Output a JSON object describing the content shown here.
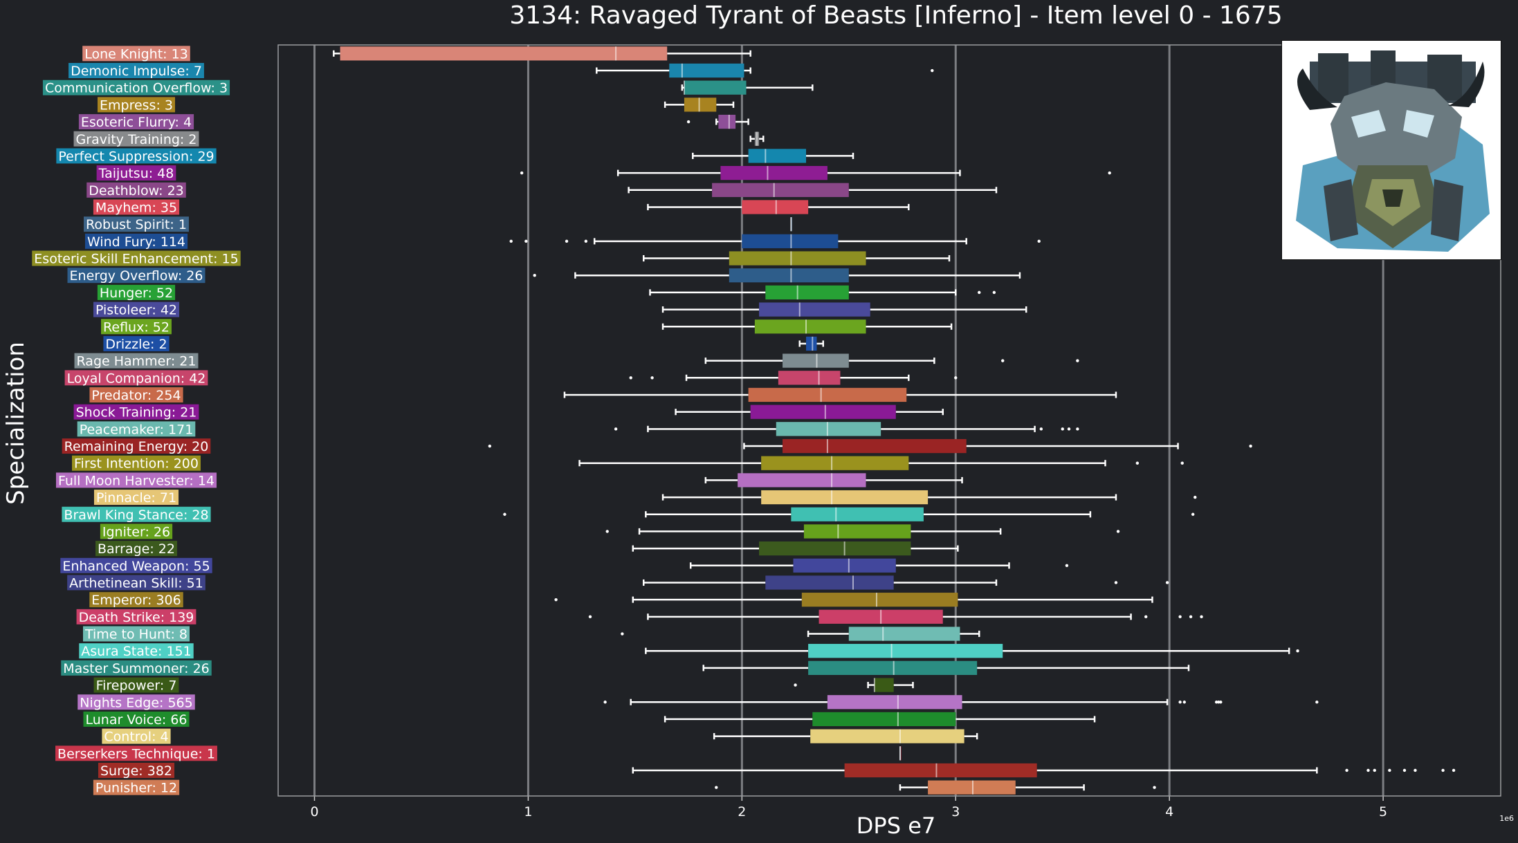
{
  "chart_data": {
    "type": "box",
    "orientation": "horizontal",
    "title": "3134: Ravaged Tyrant of Beasts [Inferno] - Item level 0 - 1675",
    "xlabel": "DPS e7",
    "ylabel": "Specialization",
    "x_offset_label": "1e6",
    "xlim": [
      -0.17,
      5.55
    ],
    "xticks": [
      0,
      1,
      2,
      3,
      4,
      5
    ],
    "grid": "vertical",
    "legend": "none",
    "boss_icon": "ravaged-tyrant-of-beasts-portrait",
    "colors": {
      "background": "#202226",
      "grid": "#7c7e82",
      "text": "#ffffff",
      "whisker": "#ffffff"
    },
    "series": [
      {
        "label": "Lone Knight: 13",
        "color": "#d98577",
        "whisker_low": 0.09,
        "q1": 0.12,
        "median": 1.41,
        "q3": 1.65,
        "whisker_high": 2.04,
        "outliers": []
      },
      {
        "label": "Demonic Impulse: 7",
        "color": "#1a86ad",
        "whisker_low": 1.32,
        "q1": 1.66,
        "median": 1.72,
        "q3": 2.01,
        "whisker_high": 2.04,
        "outliers": [
          2.89
        ]
      },
      {
        "label": "Communication Overflow: 3",
        "color": "#2b9188",
        "whisker_low": 1.72,
        "q1": 1.73,
        "median": 1.73,
        "q3": 2.02,
        "whisker_high": 2.33,
        "outliers": []
      },
      {
        "label": "Empress: 3",
        "color": "#a88320",
        "whisker_low": 1.64,
        "q1": 1.73,
        "median": 1.8,
        "q3": 1.88,
        "whisker_high": 1.96,
        "outliers": []
      },
      {
        "label": "Esoteric Flurry: 4",
        "color": "#8e4f98",
        "whisker_low": 1.88,
        "q1": 1.89,
        "median": 1.94,
        "q3": 1.97,
        "whisker_high": 2.03,
        "outliers": [
          1.75
        ]
      },
      {
        "label": "Gravity Training: 2",
        "color": "#888a8c",
        "whisker_low": 2.04,
        "q1": 2.06,
        "median": 2.07,
        "q3": 2.08,
        "whisker_high": 2.1,
        "outliers": []
      },
      {
        "label": "Perfect Suppression: 29",
        "color": "#1487ae",
        "whisker_low": 1.77,
        "q1": 2.03,
        "median": 2.11,
        "q3": 2.3,
        "whisker_high": 2.52,
        "outliers": []
      },
      {
        "label": "Taijutsu: 48",
        "color": "#8e1d93",
        "whisker_low": 1.42,
        "q1": 1.9,
        "median": 2.12,
        "q3": 2.4,
        "whisker_high": 3.02,
        "outliers": [
          0.97,
          3.72
        ]
      },
      {
        "label": "Deathblow: 23",
        "color": "#8a4788",
        "whisker_low": 1.47,
        "q1": 1.86,
        "median": 2.15,
        "q3": 2.5,
        "whisker_high": 3.19,
        "outliers": []
      },
      {
        "label": "Mayhem: 35",
        "color": "#d84655",
        "whisker_low": 1.56,
        "q1": 2.0,
        "median": 2.16,
        "q3": 2.31,
        "whisker_high": 2.78,
        "outliers": []
      },
      {
        "label": "Robust Spirit: 1",
        "color": "#3d6488",
        "whisker_low": 2.23,
        "q1": 2.23,
        "median": 2.23,
        "q3": 2.23,
        "whisker_high": 2.23,
        "outliers": []
      },
      {
        "label": "Wind Fury: 114",
        "color": "#1d4d93",
        "whisker_low": 1.31,
        "q1": 2.0,
        "median": 2.23,
        "q3": 2.45,
        "whisker_high": 3.05,
        "outliers": [
          0.92,
          0.99,
          1.18,
          1.27,
          3.39
        ]
      },
      {
        "label": "Esoteric Skill Enhancement: 15",
        "color": "#8e8f22",
        "whisker_low": 1.54,
        "q1": 1.94,
        "median": 2.23,
        "q3": 2.58,
        "whisker_high": 2.97,
        "outliers": []
      },
      {
        "label": "Energy Overflow: 26",
        "color": "#2e5d8a",
        "whisker_low": 1.22,
        "q1": 1.94,
        "median": 2.23,
        "q3": 2.5,
        "whisker_high": 3.3,
        "outliers": [
          1.03
        ]
      },
      {
        "label": "Hunger: 52",
        "color": "#27a135",
        "whisker_low": 1.57,
        "q1": 2.11,
        "median": 2.26,
        "q3": 2.5,
        "whisker_high": 3.0,
        "outliers": [
          3.11,
          3.18
        ]
      },
      {
        "label": "Pistoleer: 42",
        "color": "#4a4a9a",
        "whisker_low": 1.63,
        "q1": 2.08,
        "median": 2.27,
        "q3": 2.6,
        "whisker_high": 3.33,
        "outliers": []
      },
      {
        "label": "Reflux: 52",
        "color": "#6ba51f",
        "whisker_low": 1.63,
        "q1": 2.06,
        "median": 2.3,
        "q3": 2.58,
        "whisker_high": 2.98,
        "outliers": []
      },
      {
        "label": "Drizzle: 2",
        "color": "#1d4fa5",
        "whisker_low": 2.27,
        "q1": 2.3,
        "median": 2.33,
        "q3": 2.35,
        "whisker_high": 2.38,
        "outliers": []
      },
      {
        "label": "Rage Hammer: 21",
        "color": "#7e8c91",
        "whisker_low": 1.83,
        "q1": 2.19,
        "median": 2.35,
        "q3": 2.5,
        "whisker_high": 2.9,
        "outliers": [
          3.22,
          3.57
        ]
      },
      {
        "label": "Loyal Companion: 42",
        "color": "#c7456b",
        "whisker_low": 1.74,
        "q1": 2.17,
        "median": 2.36,
        "q3": 2.46,
        "whisker_high": 2.78,
        "outliers": [
          1.48,
          1.58,
          3.0
        ]
      },
      {
        "label": "Predator: 254",
        "color": "#c86a4a",
        "whisker_low": 1.17,
        "q1": 2.03,
        "median": 2.37,
        "q3": 2.77,
        "whisker_high": 3.75,
        "outliers": []
      },
      {
        "label": "Shock Training: 21",
        "color": "#8a1a96",
        "whisker_low": 1.69,
        "q1": 2.04,
        "median": 2.39,
        "q3": 2.72,
        "whisker_high": 2.94,
        "outliers": []
      },
      {
        "label": "Peacemaker: 171",
        "color": "#6ab8ae",
        "whisker_low": 1.56,
        "q1": 2.16,
        "median": 2.4,
        "q3": 2.65,
        "whisker_high": 3.37,
        "outliers": [
          1.41,
          3.4,
          3.5,
          3.53,
          3.57
        ]
      },
      {
        "label": "Remaining Energy: 20",
        "color": "#9a2424",
        "whisker_low": 2.01,
        "q1": 2.19,
        "median": 2.4,
        "q3": 3.05,
        "whisker_high": 4.04,
        "outliers": [
          0.82,
          4.38
        ]
      },
      {
        "label": "First Intention: 200",
        "color": "#9a921e",
        "whisker_low": 1.24,
        "q1": 2.09,
        "median": 2.42,
        "q3": 2.78,
        "whisker_high": 3.7,
        "outliers": [
          3.85,
          4.06
        ]
      },
      {
        "label": "Full Moon Harvester: 14",
        "color": "#b56fc2",
        "whisker_low": 1.83,
        "q1": 1.98,
        "median": 2.42,
        "q3": 2.58,
        "whisker_high": 3.03,
        "outliers": []
      },
      {
        "label": "Pinnacle: 71",
        "color": "#e6c676",
        "whisker_low": 1.63,
        "q1": 2.09,
        "median": 2.42,
        "q3": 2.87,
        "whisker_high": 3.75,
        "outliers": [
          4.12
        ]
      },
      {
        "label": "Brawl King Stance: 28",
        "color": "#40c0b2",
        "whisker_low": 1.55,
        "q1": 2.23,
        "median": 2.44,
        "q3": 2.85,
        "whisker_high": 3.63,
        "outliers": [
          0.89,
          4.11
        ]
      },
      {
        "label": "Igniter: 26",
        "color": "#66a21c",
        "whisker_low": 1.52,
        "q1": 2.29,
        "median": 2.45,
        "q3": 2.79,
        "whisker_high": 3.21,
        "outliers": [
          1.37,
          3.76
        ]
      },
      {
        "label": "Barrage: 22",
        "color": "#3c5a1e",
        "whisker_low": 1.49,
        "q1": 2.08,
        "median": 2.48,
        "q3": 2.79,
        "whisker_high": 3.01,
        "outliers": []
      },
      {
        "label": "Enhanced Weapon: 55",
        "color": "#42479c",
        "whisker_low": 1.76,
        "q1": 2.24,
        "median": 2.5,
        "q3": 2.72,
        "whisker_high": 3.25,
        "outliers": [
          3.52
        ]
      },
      {
        "label": "Arthetinean Skill: 51",
        "color": "#3e4288",
        "whisker_low": 1.54,
        "q1": 2.11,
        "median": 2.52,
        "q3": 2.71,
        "whisker_high": 3.19,
        "outliers": [
          3.75,
          3.99
        ]
      },
      {
        "label": "Emperor: 306",
        "color": "#9a7d22",
        "whisker_low": 1.49,
        "q1": 2.28,
        "median": 2.63,
        "q3": 3.01,
        "whisker_high": 3.92,
        "outliers": [
          1.13
        ]
      },
      {
        "label": "Death Strike: 139",
        "color": "#cc3f68",
        "whisker_low": 1.56,
        "q1": 2.36,
        "median": 2.65,
        "q3": 2.94,
        "whisker_high": 3.82,
        "outliers": [
          1.29,
          3.89,
          4.05,
          4.1,
          4.15
        ]
      },
      {
        "label": "Time to Hunt: 8",
        "color": "#6fbcb3",
        "whisker_low": 2.31,
        "q1": 2.5,
        "median": 2.66,
        "q3": 3.02,
        "whisker_high": 3.11,
        "outliers": [
          1.44
        ]
      },
      {
        "label": "Asura State: 151",
        "color": "#4fd0c5",
        "whisker_low": 1.55,
        "q1": 2.31,
        "median": 2.7,
        "q3": 3.22,
        "whisker_high": 4.56,
        "outliers": [
          4.6
        ]
      },
      {
        "label": "Master Summoner: 26",
        "color": "#2b8d82",
        "whisker_low": 1.82,
        "q1": 2.31,
        "median": 2.71,
        "q3": 3.1,
        "whisker_high": 4.09,
        "outliers": []
      },
      {
        "label": "Firepower: 7",
        "color": "#3a5a16",
        "whisker_low": 2.59,
        "q1": 2.62,
        "median": 2.62,
        "q3": 2.71,
        "whisker_high": 2.8,
        "outliers": [
          2.25
        ]
      },
      {
        "label": "Nights Edge: 565",
        "color": "#b574c6",
        "whisker_low": 1.48,
        "q1": 2.4,
        "median": 2.73,
        "q3": 3.03,
        "whisker_high": 3.99,
        "outliers": [
          1.36,
          4.05,
          4.07,
          4.22,
          4.23,
          4.24,
          4.69
        ]
      },
      {
        "label": "Lunar Voice: 66",
        "color": "#1e8c2c",
        "whisker_low": 1.64,
        "q1": 2.33,
        "median": 2.73,
        "q3": 3.0,
        "whisker_high": 3.65,
        "outliers": []
      },
      {
        "label": "Control: 4",
        "color": "#e6d07e",
        "whisker_low": 1.87,
        "q1": 2.32,
        "median": 2.74,
        "q3": 3.04,
        "whisker_high": 3.1,
        "outliers": []
      },
      {
        "label": "Berserkers Technique: 1",
        "color": "#c9364b",
        "whisker_low": 2.74,
        "q1": 2.74,
        "median": 2.74,
        "q3": 2.74,
        "whisker_high": 2.74,
        "outliers": []
      },
      {
        "label": "Surge: 382",
        "color": "#a02c26",
        "whisker_low": 1.49,
        "q1": 2.48,
        "median": 2.91,
        "q3": 3.38,
        "whisker_high": 4.69,
        "outliers": [
          4.83,
          4.93,
          4.96,
          5.03,
          5.1,
          5.15,
          5.28,
          5.33
        ]
      },
      {
        "label": "Punisher: 12",
        "color": "#d07c55",
        "whisker_low": 2.74,
        "q1": 2.87,
        "median": 3.08,
        "q3": 3.28,
        "whisker_high": 3.6,
        "outliers": [
          1.88,
          3.93
        ]
      }
    ]
  }
}
